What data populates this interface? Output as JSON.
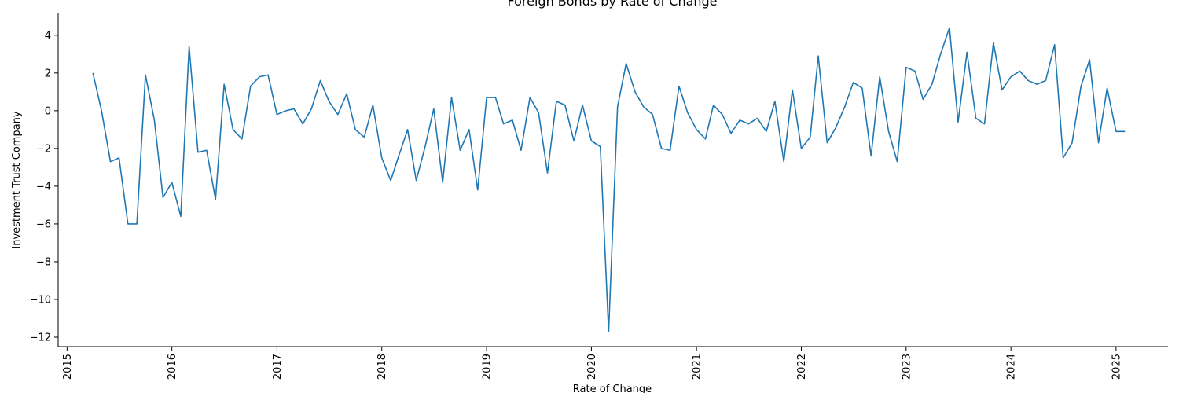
{
  "chart_data": {
    "type": "line",
    "title": "Foreign Bonds by Rate of Change",
    "xlabel": "Rate of Change",
    "ylabel": "Investment Trust Company",
    "x_ticks": [
      "2015",
      "2016",
      "2017",
      "2018",
      "2019",
      "2020",
      "2021",
      "2022",
      "2023",
      "2024",
      "2025"
    ],
    "y_ticks": [
      4,
      2,
      0,
      -2,
      -4,
      -6,
      -8,
      -10,
      -12
    ],
    "xlim": [
      "2014-12-01",
      "2025-07-01"
    ],
    "ylim": [
      -12.5,
      5.2
    ],
    "grid": false,
    "line_color": "#1f77b4",
    "series": [
      {
        "x": [
          "2015-04",
          "2015-05",
          "2015-06",
          "2015-07",
          "2015-08",
          "2015-09",
          "2015-10",
          "2015-11",
          "2015-12",
          "2016-01",
          "2016-02",
          "2016-03",
          "2016-04",
          "2016-05",
          "2016-06",
          "2016-07",
          "2016-08",
          "2016-09",
          "2016-10",
          "2016-11",
          "2016-12",
          "2017-01",
          "2017-02",
          "2017-03",
          "2017-04",
          "2017-05",
          "2017-06",
          "2017-07",
          "2017-08",
          "2017-09",
          "2017-10",
          "2017-11",
          "2017-12",
          "2018-01",
          "2018-02",
          "2018-03",
          "2018-04",
          "2018-05",
          "2018-06",
          "2018-07",
          "2018-08",
          "2018-09",
          "2018-10",
          "2018-11",
          "2018-12",
          "2019-01",
          "2019-02",
          "2019-03",
          "2019-04",
          "2019-05",
          "2019-06",
          "2019-07",
          "2019-08",
          "2019-09",
          "2019-10",
          "2019-11",
          "2019-12",
          "2020-01",
          "2020-02",
          "2020-03",
          "2020-04",
          "2020-05",
          "2020-06",
          "2020-07",
          "2020-08",
          "2020-09",
          "2020-10",
          "2020-11",
          "2020-12",
          "2021-01",
          "2021-02",
          "2021-03",
          "2021-04",
          "2021-05",
          "2021-06",
          "2021-07",
          "2021-08",
          "2021-09",
          "2021-10",
          "2021-11",
          "2021-12",
          "2022-01",
          "2022-02",
          "2022-03",
          "2022-04",
          "2022-05",
          "2022-06",
          "2022-07",
          "2022-08",
          "2022-09",
          "2022-10",
          "2022-11",
          "2022-12",
          "2023-01",
          "2023-02",
          "2023-03",
          "2023-04",
          "2023-05",
          "2023-06",
          "2023-07",
          "2023-08",
          "2023-09",
          "2023-10",
          "2023-11",
          "2023-12",
          "2024-01",
          "2024-02",
          "2024-03",
          "2024-04",
          "2024-05",
          "2024-06",
          "2024-07",
          "2024-08",
          "2024-09",
          "2024-10",
          "2024-11",
          "2024-12",
          "2025-01",
          "2025-02"
        ],
        "values": [
          2.0,
          0.0,
          -2.7,
          -2.5,
          -6.0,
          -6.0,
          1.9,
          -0.5,
          -4.6,
          -3.8,
          -5.6,
          3.4,
          -2.2,
          -2.1,
          -4.7,
          1.4,
          -1.0,
          -1.5,
          1.3,
          1.8,
          1.9,
          -0.2,
          0.0,
          0.1,
          -0.7,
          0.1,
          1.6,
          0.5,
          -0.2,
          0.9,
          -1.0,
          -1.4,
          0.3,
          -2.5,
          -3.7,
          -2.4,
          -1.0,
          -3.7,
          -1.9,
          0.1,
          -3.8,
          0.7,
          -2.1,
          -1.0,
          -4.2,
          0.7,
          0.7,
          -0.7,
          -0.5,
          -2.1,
          0.7,
          -0.1,
          -3.3,
          0.5,
          0.3,
          -1.6,
          0.3,
          -1.6,
          -1.9,
          -11.7,
          0.2,
          2.5,
          1.0,
          0.2,
          -0.2,
          -2.0,
          -2.1,
          1.3,
          -0.1,
          -1.0,
          -1.5,
          0.3,
          -0.2,
          -1.2,
          -0.5,
          -0.7,
          -0.4,
          -1.1,
          0.5,
          -2.7,
          1.1,
          -2.0,
          -1.4,
          2.9,
          -1.7,
          -0.9,
          0.2,
          1.5,
          1.2,
          -2.4,
          1.8,
          -1.1,
          -2.7,
          2.3,
          2.1,
          0.6,
          1.4,
          3.0,
          4.4,
          -0.6,
          3.1,
          -0.4,
          -0.7,
          3.6,
          1.1,
          1.8,
          2.1,
          1.6,
          1.4,
          1.6,
          3.5,
          -2.5,
          -1.7,
          1.3,
          2.7,
          -1.7,
          1.2,
          -1.1,
          -1.1
        ]
      }
    ]
  }
}
